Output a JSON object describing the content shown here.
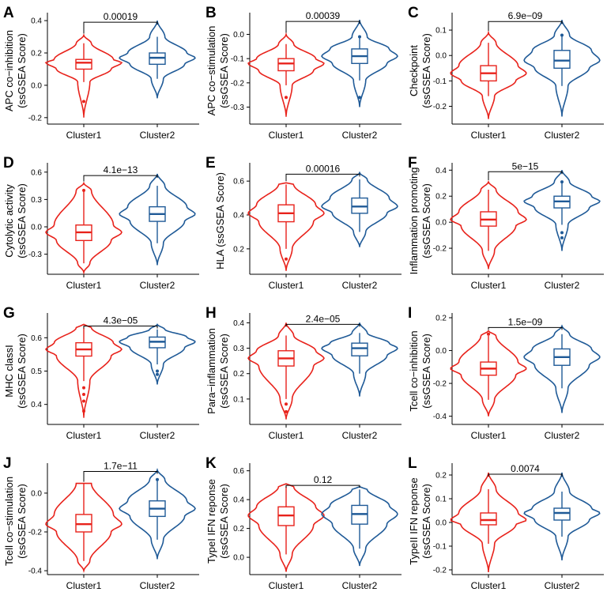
{
  "figure": {
    "groups": [
      "Cluster1",
      "Cluster2"
    ],
    "colors": {
      "cluster1": "#e8221b",
      "cluster2": "#1f5a97"
    }
  },
  "chart_data": [
    {
      "type": "violin",
      "panel": "A",
      "title": "",
      "ylabel": [
        "APC co−inhibition",
        "(ssGSEA Score)"
      ],
      "categories": [
        "Cluster1",
        "Cluster2"
      ],
      "ylim": [
        -0.24,
        0.42
      ],
      "yticks": [
        -0.2,
        0.0,
        0.2,
        0.4
      ],
      "ytick_labels": [
        "-0.2",
        "0.0",
        "0.2",
        "0.4"
      ],
      "pvalue": "0.00019",
      "series": [
        {
          "name": "Cluster1",
          "q1": 0.1,
          "median": 0.14,
          "q3": 0.16,
          "lo": 0.02,
          "hi": 0.26,
          "vmin": -0.2,
          "vmax": 0.31,
          "outliers": [
            -0.1
          ]
        },
        {
          "name": "Cluster2",
          "q1": 0.13,
          "median": 0.17,
          "q3": 0.2,
          "lo": 0.04,
          "hi": 0.3,
          "vmin": -0.08,
          "vmax": 0.4,
          "outliers": []
        }
      ]
    },
    {
      "type": "violin",
      "panel": "B",
      "title": "",
      "ylabel": [
        "APC co−stimulation",
        "(ssGSEA Score)"
      ],
      "categories": [
        "Cluster1",
        "Cluster2"
      ],
      "ylim": [
        -0.37,
        0.07
      ],
      "yticks": [
        -0.3,
        -0.2,
        -0.1,
        0.0
      ],
      "ytick_labels": [
        "-0.3",
        "-0.2",
        "-0.1",
        "0.0"
      ],
      "pvalue": "0.00039",
      "series": [
        {
          "name": "Cluster1",
          "q1": -0.15,
          "median": -0.12,
          "q3": -0.1,
          "lo": -0.21,
          "hi": -0.04,
          "vmin": -0.34,
          "vmax": 0.0,
          "outliers": [
            -0.26
          ]
        },
        {
          "name": "Cluster2",
          "q1": -0.12,
          "median": -0.09,
          "q3": -0.06,
          "lo": -0.19,
          "hi": -0.01,
          "vmin": -0.3,
          "vmax": 0.06,
          "outliers": [
            -0.26,
            -0.01
          ]
        }
      ]
    },
    {
      "type": "violin",
      "panel": "C",
      "title": "",
      "ylabel": [
        "Checkpoint",
        "(ssGSEA Score)"
      ],
      "categories": [
        "Cluster1",
        "Cluster2"
      ],
      "ylim": [
        -0.27,
        0.15
      ],
      "yticks": [
        -0.2,
        -0.1,
        0.0,
        0.1
      ],
      "ytick_labels": [
        "-0.2",
        "-0.1",
        "0.0",
        "0.1"
      ],
      "pvalue": "6.9e−09",
      "series": [
        {
          "name": "Cluster1",
          "q1": -0.1,
          "median": -0.07,
          "q3": -0.04,
          "lo": -0.16,
          "hi": 0.05,
          "vmin": -0.25,
          "vmax": 0.09,
          "outliers": []
        },
        {
          "name": "Cluster2",
          "q1": -0.05,
          "median": -0.02,
          "q3": 0.02,
          "lo": -0.12,
          "hi": 0.08,
          "vmin": -0.24,
          "vmax": 0.14,
          "outliers": [
            0.08
          ]
        }
      ]
    },
    {
      "type": "violin",
      "panel": "D",
      "title": "",
      "ylabel": [
        "Cytolytic activity",
        "(ssGSEA Score)"
      ],
      "categories": [
        "Cluster1",
        "Cluster2"
      ],
      "ylim": [
        -0.52,
        0.65
      ],
      "yticks": [
        -0.3,
        0.0,
        0.3,
        0.6
      ],
      "ytick_labels": [
        "-0.3",
        "0.0",
        "0.3",
        "0.6"
      ],
      "pvalue": "4.1e−13",
      "series": [
        {
          "name": "Cluster1",
          "q1": -0.15,
          "median": -0.06,
          "q3": 0.02,
          "lo": -0.4,
          "hi": 0.4,
          "vmin": -0.5,
          "vmax": 0.48,
          "outliers": [
            0.4
          ]
        },
        {
          "name": "Cluster2",
          "q1": 0.06,
          "median": 0.14,
          "q3": 0.22,
          "lo": -0.18,
          "hi": 0.45,
          "vmin": -0.42,
          "vmax": 0.58,
          "outliers": []
        }
      ]
    },
    {
      "type": "violin",
      "panel": "E",
      "title": "",
      "ylabel": [
        "HLA (ssGSEA Score)"
      ],
      "categories": [
        "Cluster1",
        "Cluster2"
      ],
      "ylim": [
        0.05,
        0.68
      ],
      "yticks": [
        0.2,
        0.4,
        0.6
      ],
      "ytick_labels": [
        "0.2",
        "0.4",
        "0.6"
      ],
      "pvalue": "0.00016",
      "series": [
        {
          "name": "Cluster1",
          "q1": 0.36,
          "median": 0.41,
          "q3": 0.46,
          "lo": 0.2,
          "hi": 0.58,
          "vmin": 0.07,
          "vmax": 0.59,
          "outliers": [
            0.14
          ]
        },
        {
          "name": "Cluster2",
          "q1": 0.41,
          "median": 0.45,
          "q3": 0.5,
          "lo": 0.3,
          "hi": 0.61,
          "vmin": 0.21,
          "vmax": 0.65,
          "outliers": []
        }
      ]
    },
    {
      "type": "violin",
      "panel": "F",
      "title": "",
      "ylabel": [
        "Inflammation promoting",
        "(ssGSEA Score)"
      ],
      "categories": [
        "Cluster1",
        "Cluster2"
      ],
      "ylim": [
        -0.4,
        0.42
      ],
      "yticks": [
        -0.2,
        0.0,
        0.2,
        0.4
      ],
      "ytick_labels": [
        "-0.2",
        "0.0",
        "0.2",
        "0.4"
      ],
      "pvalue": "5e−15",
      "series": [
        {
          "name": "Cluster1",
          "q1": -0.03,
          "median": 0.02,
          "q3": 0.08,
          "lo": -0.22,
          "hi": 0.25,
          "vmin": -0.36,
          "vmax": 0.31,
          "outliers": []
        },
        {
          "name": "Cluster2",
          "q1": 0.11,
          "median": 0.16,
          "q3": 0.2,
          "lo": -0.02,
          "hi": 0.31,
          "vmin": -0.22,
          "vmax": 0.4,
          "outliers": [
            -0.12,
            -0.08,
            0.31
          ]
        }
      ]
    },
    {
      "type": "violin",
      "panel": "G",
      "title": "",
      "ylabel": [
        "MHC classI",
        "(ssGSEA Score)"
      ],
      "categories": [
        "Cluster1",
        "Cluster2"
      ],
      "ylim": [
        0.34,
        0.66
      ],
      "yticks": [
        0.4,
        0.5,
        0.6
      ],
      "ytick_labels": [
        "0.4",
        "0.5",
        "0.6"
      ],
      "pvalue": "4.3e−05",
      "series": [
        {
          "name": "Cluster1",
          "q1": 0.545,
          "median": 0.565,
          "q3": 0.585,
          "lo": 0.47,
          "hi": 0.63,
          "vmin": 0.36,
          "vmax": 0.64,
          "outliers": [
            0.38,
            0.41,
            0.43,
            0.45
          ]
        },
        {
          "name": "Cluster2",
          "q1": 0.57,
          "median": 0.588,
          "q3": 0.602,
          "lo": 0.52,
          "hi": 0.625,
          "vmin": 0.46,
          "vmax": 0.64,
          "outliers": [
            0.49,
            0.5
          ]
        }
      ]
    },
    {
      "type": "violin",
      "panel": "H",
      "title": "",
      "ylabel": [
        "Para−inflammation",
        "(ssGSEA Score)"
      ],
      "categories": [
        "Cluster1",
        "Cluster2"
      ],
      "ylim": [
        0.0,
        0.42
      ],
      "yticks": [
        0.1,
        0.2,
        0.3,
        0.4
      ],
      "ytick_labels": [
        "0.1",
        "0.2",
        "0.3",
        "0.4"
      ],
      "pvalue": "2.4e−05",
      "series": [
        {
          "name": "Cluster1",
          "q1": 0.23,
          "median": 0.26,
          "q3": 0.29,
          "lo": 0.1,
          "hi": 0.35,
          "vmin": 0.02,
          "vmax": 0.4,
          "outliers": [
            0.05,
            0.08
          ]
        },
        {
          "name": "Cluster2",
          "q1": 0.27,
          "median": 0.3,
          "q3": 0.32,
          "lo": 0.2,
          "hi": 0.36,
          "vmin": 0.11,
          "vmax": 0.4,
          "outliers": []
        }
      ]
    },
    {
      "type": "violin",
      "panel": "I",
      "title": "",
      "ylabel": [
        "Tcell co−inhibition",
        "(ssGSEA Score)"
      ],
      "categories": [
        "Cluster1",
        "Cluster2"
      ],
      "ylim": [
        -0.45,
        0.2
      ],
      "yticks": [
        -0.4,
        -0.2,
        0.0,
        0.2
      ],
      "ytick_labels": [
        "-0.4",
        "-0.2",
        "0.0",
        "0.2"
      ],
      "pvalue": "1.5e−09",
      "series": [
        {
          "name": "Cluster1",
          "q1": -0.15,
          "median": -0.11,
          "q3": -0.07,
          "lo": -0.3,
          "hi": 0.09,
          "vmin": -0.4,
          "vmax": 0.12,
          "outliers": [
            0.1
          ]
        },
        {
          "name": "Cluster2",
          "q1": -0.09,
          "median": -0.04,
          "q3": 0.01,
          "lo": -0.23,
          "hi": 0.1,
          "vmin": -0.38,
          "vmax": 0.15,
          "outliers": []
        }
      ]
    },
    {
      "type": "violin",
      "panel": "J",
      "title": "",
      "ylabel": [
        "Tcell co−stimulation",
        "(ssGSEA Score)"
      ],
      "categories": [
        "Cluster1",
        "Cluster2"
      ],
      "ylim": [
        -0.42,
        0.13
      ],
      "yticks": [
        -0.4,
        -0.2,
        0.0
      ],
      "ytick_labels": [
        "-0.4",
        "-0.2",
        "0.0"
      ],
      "pvalue": "1.7e−11",
      "series": [
        {
          "name": "Cluster1",
          "q1": -0.2,
          "median": -0.16,
          "q3": -0.11,
          "lo": -0.35,
          "hi": 0.05,
          "vmin": -0.4,
          "vmax": 0.05,
          "outliers": []
        },
        {
          "name": "Cluster2",
          "q1": -0.12,
          "median": -0.08,
          "q3": -0.04,
          "lo": -0.24,
          "hi": 0.07,
          "vmin": -0.34,
          "vmax": 0.12,
          "outliers": [
            0.07
          ]
        }
      ]
    },
    {
      "type": "violin",
      "panel": "K",
      "title": "",
      "ylabel": [
        "TypeI IFN reponse",
        "(ssGSEA Score)"
      ],
      "categories": [
        "Cluster1",
        "Cluster2"
      ],
      "ylim": [
        -0.12,
        0.62
      ],
      "yticks": [
        0.0,
        0.2,
        0.4,
        0.6
      ],
      "ytick_labels": [
        "0.0",
        "0.2",
        "0.4",
        "0.6"
      ],
      "pvalue": "0.12",
      "series": [
        {
          "name": "Cluster1",
          "q1": 0.22,
          "median": 0.29,
          "q3": 0.35,
          "lo": 0.02,
          "hi": 0.49,
          "vmin": -0.1,
          "vmax": 0.51,
          "outliers": []
        },
        {
          "name": "Cluster2",
          "q1": 0.23,
          "median": 0.3,
          "q3": 0.36,
          "lo": 0.06,
          "hi": 0.47,
          "vmin": -0.06,
          "vmax": 0.49,
          "outliers": []
        }
      ]
    },
    {
      "type": "violin",
      "panel": "L",
      "title": "",
      "ylabel": [
        "TypeII IFN reponse",
        "(ssGSEA Score)"
      ],
      "categories": [
        "Cluster1",
        "Cluster2"
      ],
      "ylim": [
        -0.22,
        0.23
      ],
      "yticks": [
        -0.2,
        -0.1,
        0.0,
        0.1,
        0.2
      ],
      "ytick_labels": [
        "-0.2",
        "-0.1",
        "0.0",
        "0.1",
        "0.2"
      ],
      "pvalue": "0.0074",
      "series": [
        {
          "name": "Cluster1",
          "q1": -0.01,
          "median": 0.01,
          "q3": 0.04,
          "lo": -0.09,
          "hi": 0.14,
          "vmin": -0.21,
          "vmax": 0.21,
          "outliers": []
        },
        {
          "name": "Cluster2",
          "q1": 0.01,
          "median": 0.04,
          "q3": 0.06,
          "lo": -0.06,
          "hi": 0.13,
          "vmin": -0.16,
          "vmax": 0.21,
          "outliers": []
        }
      ]
    }
  ]
}
